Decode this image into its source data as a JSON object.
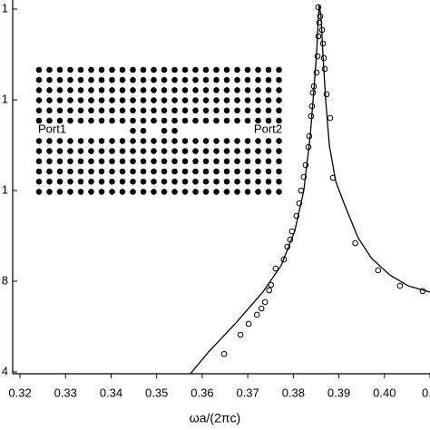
{
  "chart_data": {
    "type": "scatter",
    "x_label": "ωa/(2πc)",
    "annotations": [
      "Port1",
      "Port2"
    ],
    "log_y": true,
    "xlim": [
      0.3184,
      0.41
    ],
    "ylim": [
      9.55e-05,
      1.26
    ],
    "xticks": [
      0.32,
      0.33,
      0.34,
      0.35,
      0.36,
      0.37,
      0.38,
      0.39,
      {
        "value": 0.4,
        "label": "0.40"
      },
      {
        "value": 0.41,
        "label": "0.4"
      }
    ],
    "yticks": [
      1,
      {
        "value": 0.1,
        "label": "1"
      },
      {
        "value": 0.01,
        "label": "1"
      },
      {
        "value": 0.001,
        "label": "8"
      },
      {
        "value": 0.0001,
        "label": "4"
      }
    ],
    "series": [
      {
        "color": "#000000",
        "marker": "circle",
        "x": [
          0.3648,
          0.3684,
          0.3702,
          0.372,
          0.373,
          0.3738,
          0.3747,
          0.3751,
          0.3761,
          0.3779,
          0.3787,
          0.3793,
          0.3797,
          0.3807,
          0.3813,
          0.3817,
          0.3823,
          0.3827,
          0.3833,
          0.3835,
          0.3839,
          0.3841,
          0.3843,
          0.3845,
          0.3851,
          0.3853,
          0.3855,
          0.3857,
          0.3855,
          0.3859,
          0.3863,
          0.3865,
          0.3867,
          0.3869,
          0.3873,
          0.3881,
          0.3887,
          0.3936,
          0.3986,
          0.4034,
          0.4084
        ],
        "values": [
          0.000158,
          0.000257,
          0.000339,
          0.000427,
          0.000501,
          0.000589,
          0.000794,
          0.000912,
          0.00138,
          0.00174,
          0.0024,
          0.00288,
          0.00355,
          0.00525,
          0.00724,
          0.01,
          0.0141,
          0.0191,
          0.0302,
          0.0398,
          0.0661,
          0.0851,
          0.12,
          0.141,
          0.2,
          0.302,
          0.501,
          0.708,
          1.05,
          0.832,
          0.589,
          0.417,
          0.288,
          0.219,
          0.115,
          0.063,
          0.0138,
          0.00263,
          0.00132,
          0.00089,
          0.00078
        ]
      },
      {
        "color": "#000000",
        "marker": "line",
        "x": [
          0.3574,
          0.3614,
          0.3674,
          0.3733,
          0.3773,
          0.3803,
          0.3823,
          0.3837,
          0.3845,
          0.3851,
          0.3855,
          0.3857,
          0.3861,
          0.3865,
          0.3871,
          0.3879,
          0.3893,
          0.3912,
          0.3942,
          0.3972,
          0.4012,
          0.4052,
          0.41
        ],
        "values": [
          9.55e-05,
          0.000166,
          0.000347,
          0.000759,
          0.00148,
          0.00355,
          0.01,
          0.0398,
          0.126,
          0.316,
          0.794,
          1.12,
          0.794,
          0.316,
          0.1,
          0.0316,
          0.0126,
          0.00708,
          0.00302,
          0.00178,
          0.00117,
          0.00089,
          0.000759
        ]
      }
    ]
  }
}
